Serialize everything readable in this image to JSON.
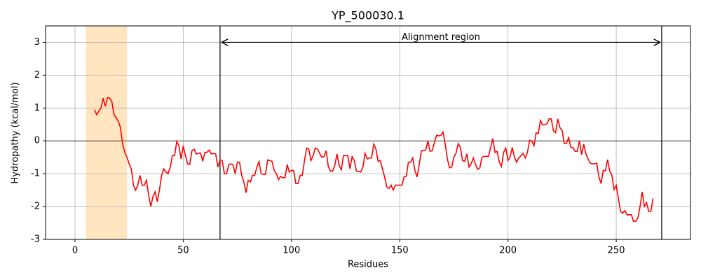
{
  "chart_data": {
    "type": "line",
    "title": "YP_500030.1",
    "xlabel": "Residues",
    "ylabel": "Hydropathy (kcal/mol)",
    "x": [
      9,
      10,
      11,
      12,
      13,
      14,
      15,
      16,
      17,
      18,
      19,
      20,
      21,
      22,
      23,
      24,
      25,
      26,
      27,
      28,
      29,
      30,
      31,
      32,
      33,
      34,
      35,
      36,
      37,
      38,
      39,
      40,
      41,
      42,
      43,
      44,
      45,
      46,
      47,
      48,
      49,
      50,
      51,
      52,
      53,
      54,
      55,
      56,
      57,
      58,
      59,
      60,
      61,
      62,
      63,
      64,
      65,
      66,
      67,
      68,
      69,
      70,
      71,
      72,
      73,
      74,
      75,
      76,
      77,
      78,
      79,
      80,
      81,
      82,
      83,
      84,
      85,
      86,
      87,
      88,
      89,
      90,
      91,
      92,
      93,
      94,
      95,
      96,
      97,
      98,
      99,
      100,
      101,
      102,
      103,
      104,
      105,
      106,
      107,
      108,
      109,
      110,
      111,
      112,
      113,
      114,
      115,
      116,
      117,
      118,
      119,
      120,
      121,
      122,
      123,
      124,
      125,
      126,
      127,
      128,
      129,
      130,
      131,
      132,
      133,
      134,
      135,
      136,
      137,
      138,
      139,
      140,
      141,
      142,
      143,
      144,
      145,
      146,
      147,
      148,
      149,
      150,
      151,
      152,
      153,
      154,
      155,
      156,
      157,
      158,
      159,
      160,
      161,
      162,
      163,
      164,
      165,
      166,
      167,
      168,
      169,
      170,
      171,
      172,
      173,
      174,
      175,
      176,
      177,
      178,
      179,
      180,
      181,
      182,
      183,
      184,
      185,
      186,
      187,
      188,
      189,
      190,
      191,
      192,
      193,
      194,
      195,
      196,
      197,
      198,
      199,
      200,
      201,
      202,
      203,
      204,
      205,
      206,
      207,
      208,
      209,
      210,
      211,
      212,
      213,
      214,
      215,
      216,
      217,
      218,
      219,
      220,
      221,
      222,
      223,
      224,
      225,
      226,
      227,
      228,
      229,
      230,
      231,
      232,
      233,
      234,
      235,
      236,
      237,
      238,
      239,
      240,
      241,
      242,
      243,
      244,
      245,
      246,
      247,
      248,
      249,
      250,
      251,
      252,
      253,
      254,
      255,
      256,
      257,
      258,
      259,
      260,
      261,
      262,
      263,
      264,
      265,
      266,
      267
    ],
    "values": [
      0.95,
      0.8,
      0.9,
      1.0,
      1.3,
      1.05,
      1.32,
      1.3,
      1.2,
      0.8,
      0.7,
      0.6,
      0.4,
      -0.1,
      -0.35,
      -0.5,
      -0.7,
      -0.85,
      -1.35,
      -1.5,
      -1.35,
      -1.05,
      -1.35,
      -1.35,
      -1.2,
      -1.65,
      -2.0,
      -1.7,
      -1.55,
      -1.85,
      -1.5,
      -1.05,
      -0.85,
      -0.95,
      -1.0,
      -0.8,
      -0.45,
      -0.45,
      -0.02,
      -0.15,
      -0.55,
      -0.15,
      -0.45,
      -0.7,
      -0.72,
      -0.3,
      -0.25,
      -0.4,
      -0.38,
      -0.37,
      -0.62,
      -0.35,
      -0.35,
      -0.28,
      -0.4,
      -0.38,
      -0.4,
      -0.8,
      -0.58,
      -0.6,
      -1.0,
      -1.0,
      -0.72,
      -0.7,
      -0.73,
      -1.0,
      -0.65,
      -0.65,
      -1.05,
      -1.25,
      -1.58,
      -1.2,
      -1.25,
      -1.05,
      -1.05,
      -0.8,
      -0.63,
      -1.0,
      -1.02,
      -1.02,
      -0.58,
      -0.6,
      -0.62,
      -0.9,
      -1.0,
      -1.18,
      -1.08,
      -1.12,
      -1.12,
      -0.72,
      -0.95,
      -0.9,
      -0.9,
      -1.3,
      -1.3,
      -1.05,
      -1.05,
      -0.6,
      -0.22,
      -0.25,
      -0.6,
      -0.45,
      -0.22,
      -0.25,
      -0.38,
      -0.5,
      -0.48,
      -0.3,
      -0.78,
      -0.92,
      -0.92,
      -0.75,
      -0.4,
      -0.75,
      -0.88,
      -0.45,
      -0.45,
      -0.45,
      -0.85,
      -0.48,
      -0.6,
      -0.92,
      -0.93,
      -0.95,
      -0.8,
      -0.38,
      -0.55,
      -0.52,
      -0.52,
      -0.1,
      -0.25,
      -0.62,
      -0.6,
      -0.85,
      -1.1,
      -1.4,
      -1.45,
      -1.35,
      -1.5,
      -1.35,
      -1.35,
      -1.35,
      -1.35,
      -1.1,
      -1.08,
      -0.65,
      -0.65,
      -0.52,
      -0.9,
      -1.1,
      -0.72,
      -0.3,
      -0.3,
      -0.28,
      0.0,
      -0.32,
      -0.3,
      -0.05,
      0.17,
      0.15,
      0.17,
      0.27,
      -0.1,
      -0.55,
      -0.82,
      -0.8,
      -0.5,
      -0.38,
      -0.08,
      -0.2,
      -0.6,
      -0.62,
      -0.4,
      -0.8,
      -0.7,
      -0.52,
      -0.72,
      -0.87,
      -0.82,
      -0.5,
      -0.47,
      -0.47,
      -0.47,
      -0.2,
      0.07,
      -0.35,
      -0.32,
      -0.65,
      -0.78,
      -0.35,
      -0.22,
      -0.6,
      -0.48,
      -0.2,
      -0.5,
      -0.65,
      -0.52,
      -0.45,
      -0.38,
      -0.52,
      -0.35,
      0.02,
      0.0,
      -0.15,
      0.25,
      0.22,
      0.62,
      0.48,
      0.5,
      0.52,
      0.67,
      0.67,
      0.3,
      0.25,
      0.67,
      0.4,
      0.32,
      -0.08,
      -0.08,
      0.1,
      -0.2,
      -0.2,
      -0.32,
      -0.32,
      0.0,
      -0.42,
      -0.1,
      -0.4,
      -0.55,
      -0.68,
      -0.7,
      -0.7,
      -0.68,
      -1.1,
      -1.3,
      -0.9,
      -0.92,
      -0.57,
      -0.92,
      -1.05,
      -1.48,
      -1.35,
      -1.75,
      -2.15,
      -2.2,
      -2.12,
      -2.25,
      -2.25,
      -2.25,
      -2.45,
      -2.45,
      -2.35,
      -2.0,
      -1.55,
      -2.0,
      -1.88,
      -2.15,
      -2.15,
      -1.75
    ],
    "color": "#ff0000",
    "xlim": [
      -13.6,
      284.3
    ],
    "ylim": [
      -3,
      3.5
    ],
    "xticks": [
      0,
      50,
      100,
      150,
      200,
      250
    ],
    "yticks": [
      -3,
      -2,
      -1,
      0,
      1,
      2,
      3
    ],
    "grid": true,
    "hline": 0,
    "shaded_region": {
      "xmin": 5,
      "xmax": 24,
      "color": "#ffe6c0"
    },
    "vlines": [
      67,
      271
    ],
    "annotation": {
      "text": "Alignment region",
      "x_start": 67,
      "x_end": 271,
      "y": 3
    }
  }
}
